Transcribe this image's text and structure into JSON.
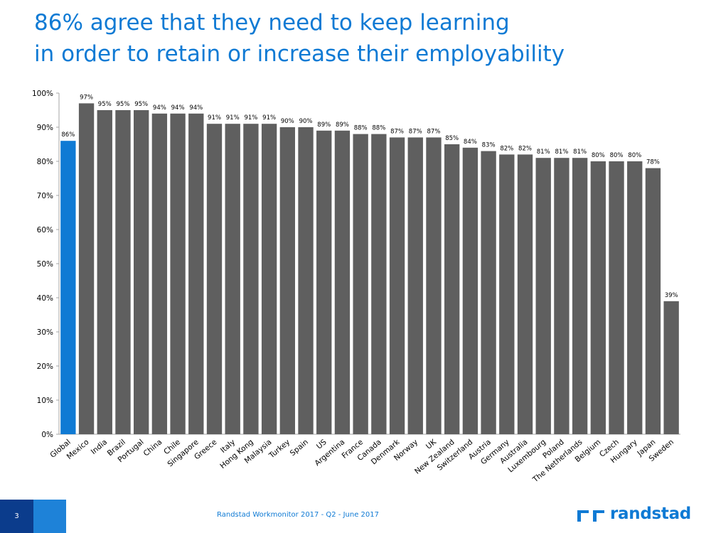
{
  "header": {
    "title_line1": "86%  agree that they need to keep learning",
    "title_line2": "in order to retain or increase their employability"
  },
  "footer": {
    "page_number": "3",
    "source": "Randstad Workmonitor 2017 - Q2 - June 2017",
    "logo_text": "randstad"
  },
  "colors": {
    "title": "#0f7ad4",
    "highlight_bar": "#0f7ad4",
    "bar": "#5f5f5f",
    "axis": "#a6a6a6",
    "footer_dark": "#0b3c8c",
    "footer_light": "#1e82d8"
  },
  "chart_data": {
    "type": "bar",
    "categories": [
      "Global",
      "Mexico",
      "India",
      "Brazil",
      "Portugal",
      "China",
      "Chile",
      "Singapore",
      "Greece",
      "Italy",
      "Hong Kong",
      "Malaysia",
      "Turkey",
      "Spain",
      "US",
      "Argentina",
      "France",
      "Canada",
      "Denmark",
      "Norway",
      "UK",
      "New Zealand",
      "Switzerland",
      "Austria",
      "Germany",
      "Australia",
      "Luxembourg",
      "Poland",
      "The Netherlands",
      "Belgium",
      "Czech",
      "Hungary",
      "Japan",
      "Sweden"
    ],
    "values": [
      86,
      97,
      95,
      95,
      95,
      94,
      94,
      94,
      91,
      91,
      91,
      91,
      90,
      90,
      89,
      89,
      88,
      88,
      87,
      87,
      87,
      85,
      84,
      83,
      82,
      82,
      81,
      81,
      81,
      80,
      80,
      80,
      78,
      39
    ],
    "value_labels": [
      "86%",
      "97%",
      "95%",
      "95%",
      "95%",
      "94%",
      "94%",
      "94%",
      "91%",
      "91%",
      "91%",
      "91%",
      "90%",
      "90%",
      "89%",
      "89%",
      "88%",
      "88%",
      "87%",
      "87%",
      "87%",
      "85%",
      "84%",
      "83%",
      "82%",
      "82%",
      "81%",
      "81%",
      "81%",
      "80%",
      "80%",
      "80%",
      "78%",
      "39%"
    ],
    "highlight_category": "Global",
    "ylim": [
      0,
      100
    ],
    "yticks": [
      "0%",
      "10%",
      "20%",
      "30%",
      "40%",
      "50%",
      "60%",
      "70%",
      "80%",
      "90%",
      "100%"
    ],
    "grid": false,
    "legend": "none"
  }
}
